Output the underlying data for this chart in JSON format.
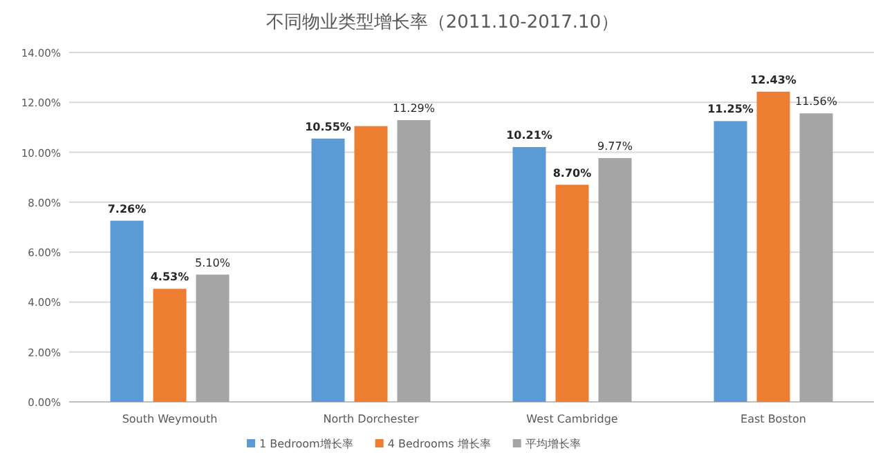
{
  "chart_data": {
    "type": "bar",
    "title": "不同物业类型增长率（2011.10-2017.10）",
    "categories": [
      "South Weymouth",
      "North Dorchester",
      "West Cambridge",
      "East Boston"
    ],
    "series": [
      {
        "name": "1 Bedroom增长率",
        "color": "#5b9bd5",
        "values": [
          7.26,
          10.55,
          10.21,
          11.25
        ],
        "value_labels": [
          "7.26%",
          "10.55%",
          "10.21%",
          "11.25%"
        ]
      },
      {
        "name": "4 Bedrooms 增长率",
        "color": "#ed7d31",
        "values": [
          4.53,
          11.05,
          8.7,
          12.43
        ],
        "value_labels": [
          "4.53%",
          null,
          "8.70%",
          "12.43%"
        ]
      },
      {
        "name": "平均增长率",
        "color": "#a5a5a5",
        "values": [
          5.1,
          11.29,
          9.77,
          11.56
        ],
        "value_labels": [
          "5.10%",
          "11.29%",
          "9.77%",
          "11.56%"
        ]
      }
    ],
    "ylim": [
      0,
      14
    ],
    "yticks": [
      {
        "value": 0,
        "label": "0.00%"
      },
      {
        "value": 2,
        "label": "2.00%"
      },
      {
        "value": 4,
        "label": "4.00%"
      },
      {
        "value": 6,
        "label": "6.00%"
      },
      {
        "value": 8,
        "label": "8.00%"
      },
      {
        "value": 10,
        "label": "10.00%"
      },
      {
        "value": 12,
        "label": "12.00%"
      },
      {
        "value": 14,
        "label": "14.00%"
      }
    ],
    "grid": "y",
    "legend": "bottom"
  }
}
